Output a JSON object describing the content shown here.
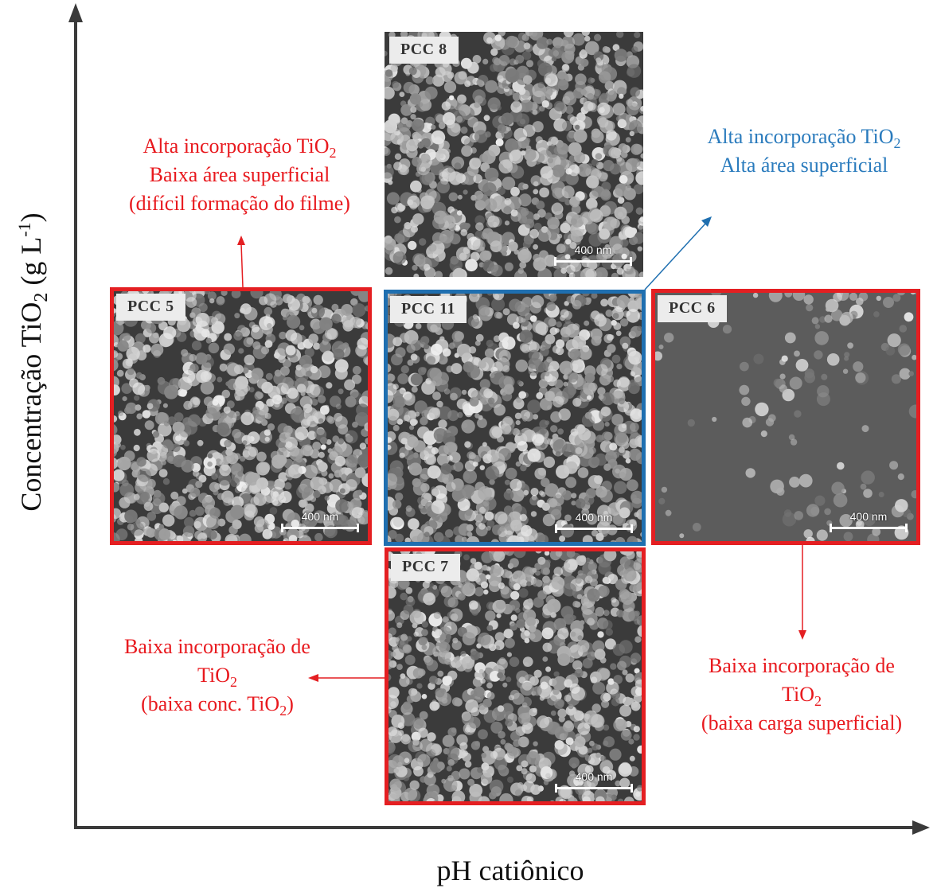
{
  "axes": {
    "y_label_prefix": "Concentração TiO",
    "y_label_sub": "2",
    "y_label_unit": " (g L",
    "y_label_sup": "-1",
    "y_label_close": ")",
    "x_label": "pH catiônico"
  },
  "colors": {
    "red": "#e41f22",
    "blue": "#1f6fb0",
    "axis": "#3a3a3a"
  },
  "panels": [
    {
      "id": "pcc8",
      "label": "PCC 8",
      "scale": "400 nm",
      "frame": "none"
    },
    {
      "id": "pcc5",
      "label": "PCC 5",
      "scale": "400 nm",
      "frame": "red"
    },
    {
      "id": "pcc11",
      "label": "PCC 11",
      "scale": "400 nm",
      "frame": "blue"
    },
    {
      "id": "pcc6",
      "label": "PCC 6",
      "scale": "400 nm",
      "frame": "red"
    },
    {
      "id": "pcc7",
      "label": "PCC 7",
      "scale": "400 nm",
      "frame": "red"
    }
  ],
  "notes": {
    "top_left": {
      "line1_prefix": "Alta incorporação TiO",
      "line1_sub": "2",
      "line2": "Baixa área superficial",
      "line3": "(difícil formação do filme)"
    },
    "top_right": {
      "line1_prefix": "Alta incorporação TiO",
      "line1_sub": "2",
      "line2": "Alta área superficial"
    },
    "bottom_left": {
      "line1": "Baixa incorporação de",
      "line2_prefix": "TiO",
      "line2_sub": "2",
      "line3_prefix": "(baixa conc. TiO",
      "line3_sub": "2",
      "line3_suffix": ")"
    },
    "bottom_right": {
      "line1": "Baixa incorporação de",
      "line2_prefix": "TiO",
      "line2_sub": "2",
      "line3": "(baixa carga superficial)"
    }
  }
}
